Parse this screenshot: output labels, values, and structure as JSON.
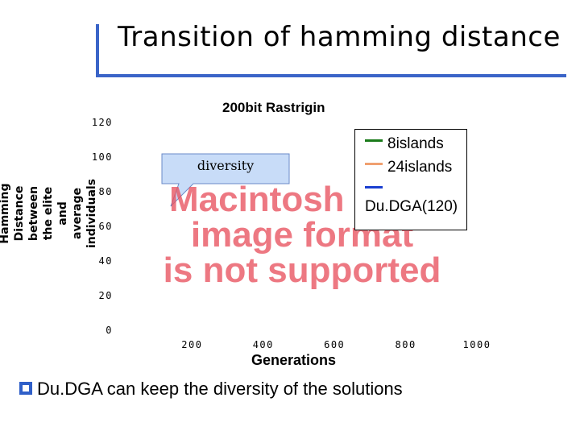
{
  "slide": {
    "title": "Transition of hamming distance",
    "bullet": "Du.DGA can keep the diversity of the solutions"
  },
  "placeholder": {
    "line1": "Macintosh PICT",
    "line2": "image format",
    "line3": "is not supported"
  },
  "callout": {
    "text": "diversity"
  },
  "chart_data": {
    "type": "line",
    "title": "200bit Rastrigin",
    "xlabel": "Generations",
    "ylabel": "Hamming Distance between the elite and average individuals",
    "ylim": [
      0,
      120
    ],
    "xlim": [
      0,
      1000
    ],
    "y_ticks": [
      "0",
      "20",
      "40",
      "60",
      "80",
      "100",
      "120"
    ],
    "x_ticks": [
      "200",
      "400",
      "600",
      "800",
      "1000"
    ],
    "legend_position": "top-right",
    "series": [
      {
        "name": "8islands",
        "color": "#1a7a1a",
        "values": []
      },
      {
        "name": "24islands",
        "color": "#f0a070",
        "values": []
      },
      {
        "name": "Du.DGA(120)",
        "color": "#1a3fd0",
        "values": []
      }
    ]
  },
  "colors": {
    "accent": "#3a64c8",
    "callout_fill": "#c8dcf8",
    "placeholder_text": "#e8525f"
  }
}
